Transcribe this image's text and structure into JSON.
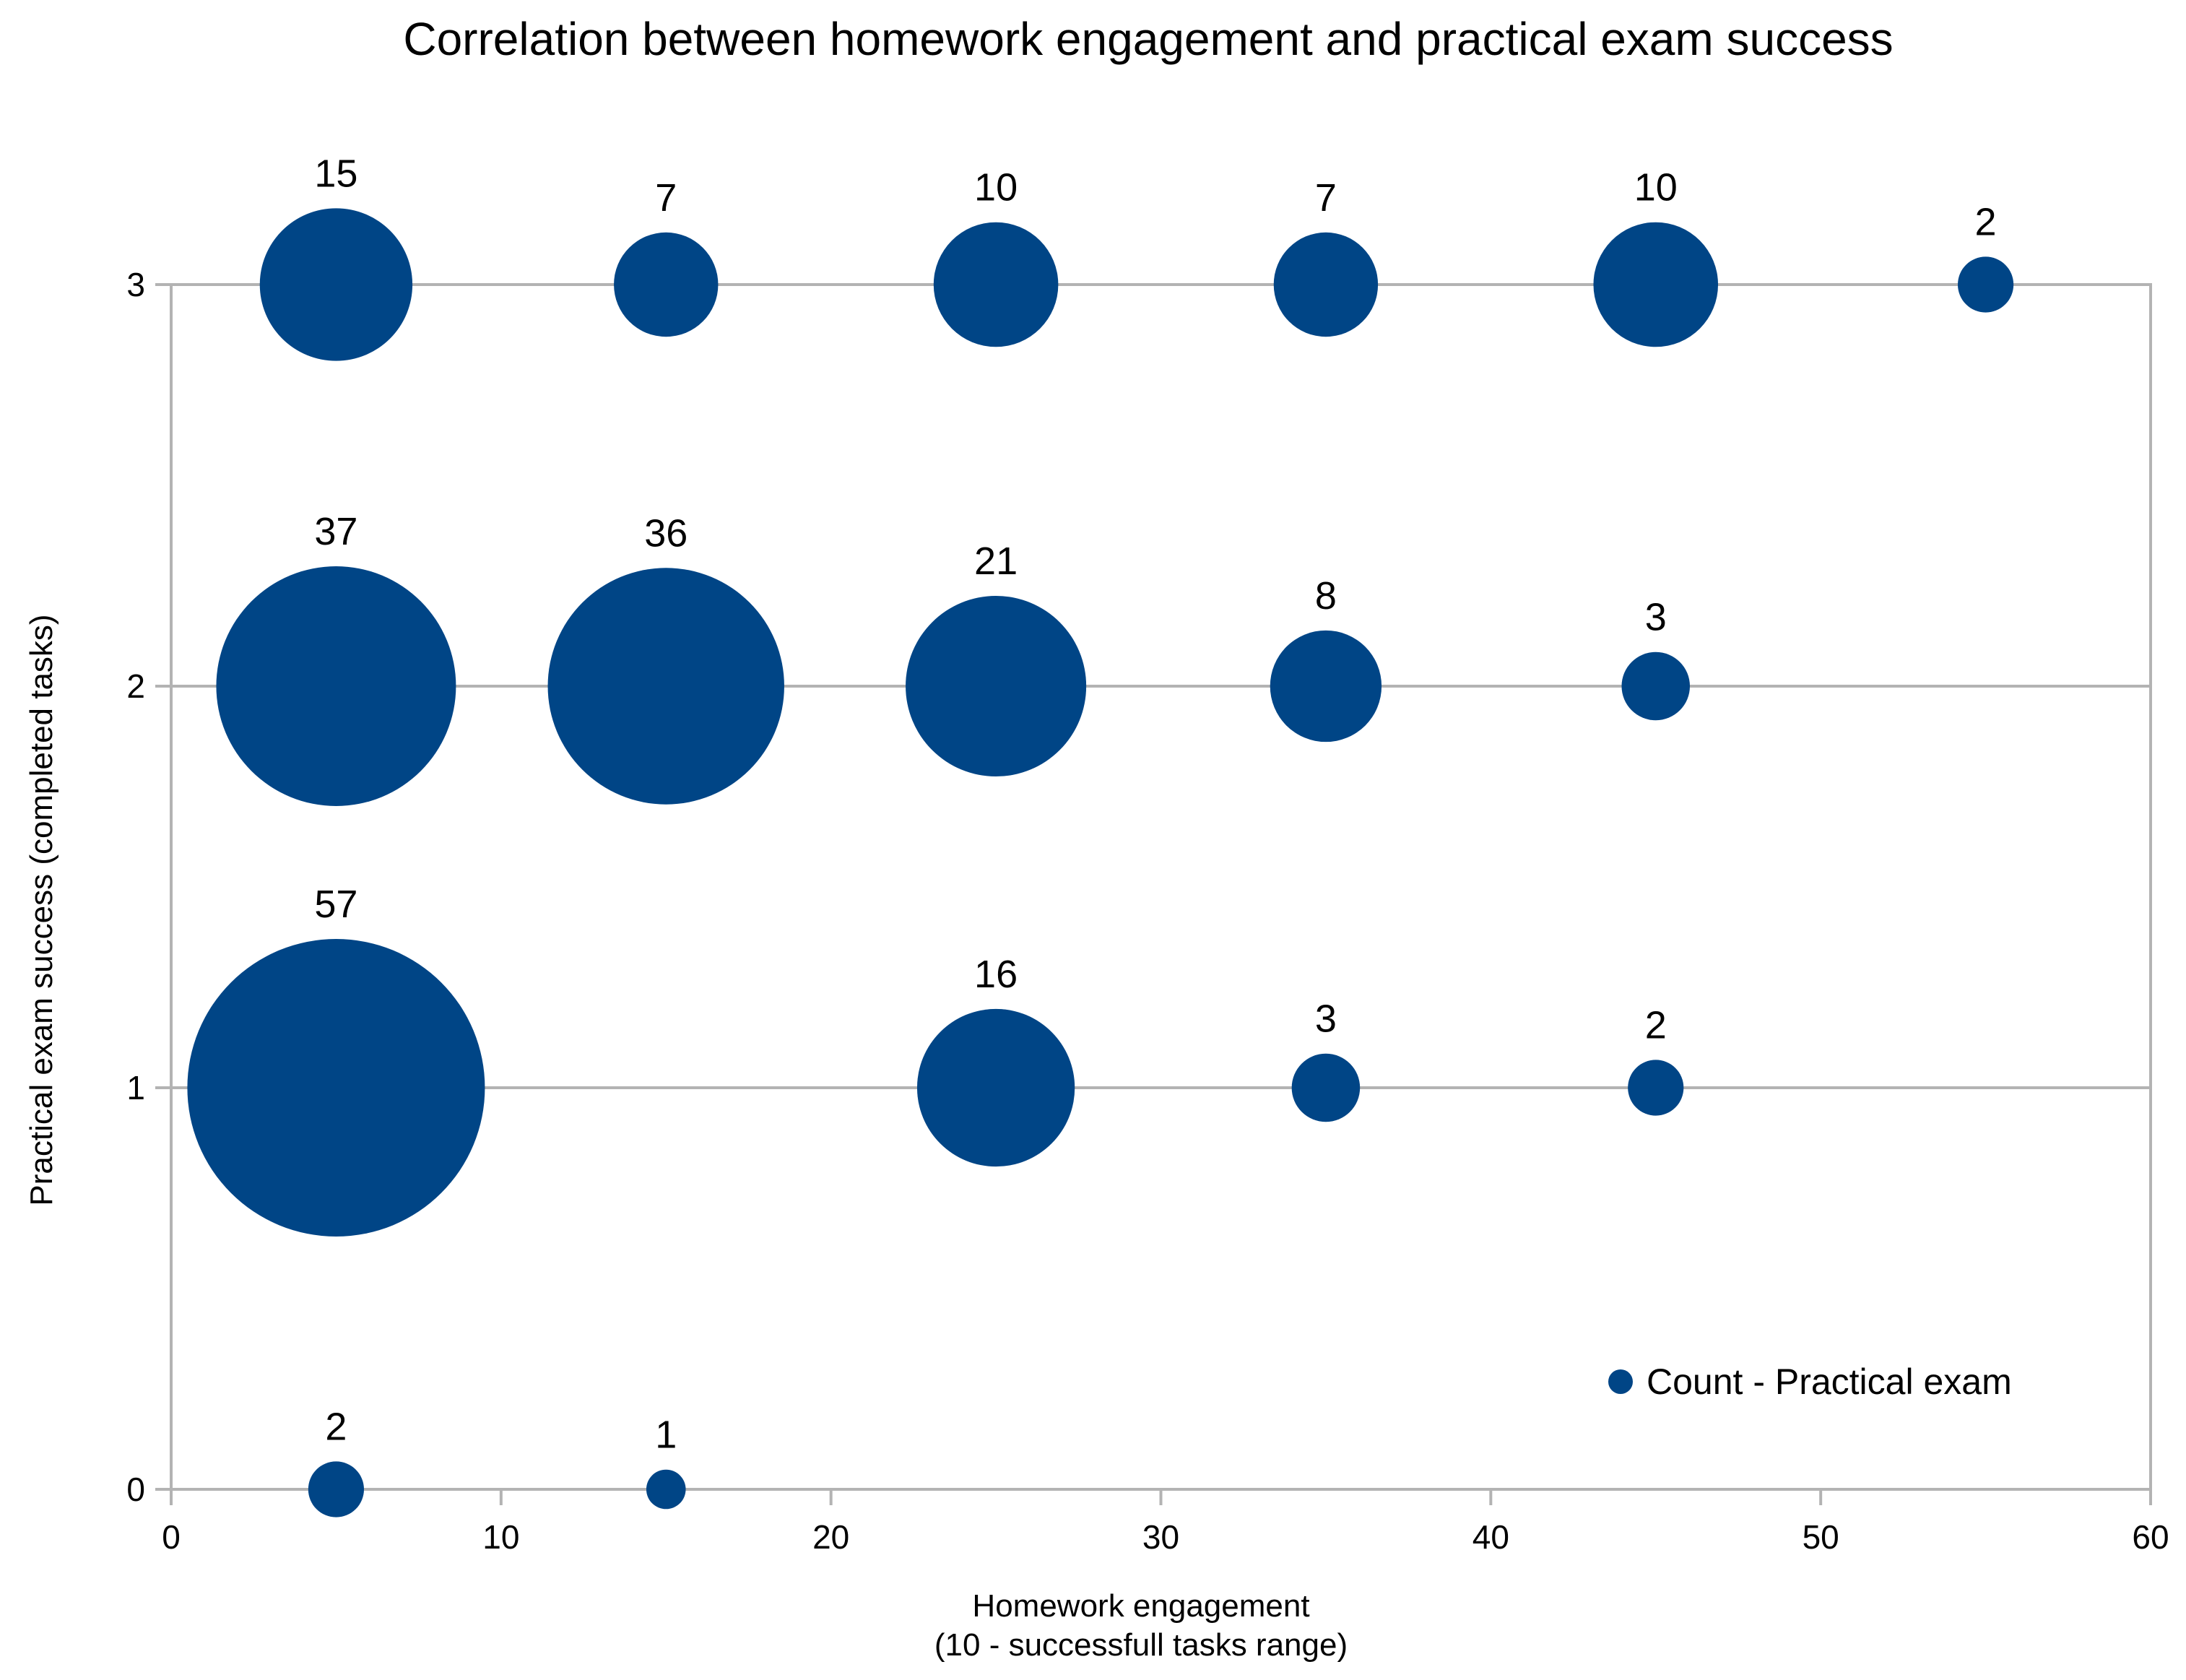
{
  "chart_data": {
    "type": "scatter",
    "title": "Correlation between homework engagement and practical exam success",
    "xlabel_line1": "Homework engagement",
    "xlabel_line2": "(10 - successfull tasks range)",
    "ylabel": "Practical exam success (completed tasks)",
    "xlim": [
      0,
      60
    ],
    "ylim": [
      0,
      3
    ],
    "xticks": [
      0,
      10,
      20,
      30,
      40,
      50,
      60
    ],
    "yticks": [
      0,
      1,
      2,
      3
    ],
    "grid": true,
    "legend_position": "bottom-right",
    "series": [
      {
        "name": "Count - Practical exam",
        "color": "#004586",
        "points": [
          {
            "x": 5,
            "y": 3,
            "size": 15
          },
          {
            "x": 15,
            "y": 3,
            "size": 7
          },
          {
            "x": 25,
            "y": 3,
            "size": 10
          },
          {
            "x": 35,
            "y": 3,
            "size": 7
          },
          {
            "x": 45,
            "y": 3,
            "size": 10
          },
          {
            "x": 55,
            "y": 3,
            "size": 2
          },
          {
            "x": 5,
            "y": 2,
            "size": 37
          },
          {
            "x": 15,
            "y": 2,
            "size": 36
          },
          {
            "x": 25,
            "y": 2,
            "size": 21
          },
          {
            "x": 35,
            "y": 2,
            "size": 8
          },
          {
            "x": 45,
            "y": 2,
            "size": 3
          },
          {
            "x": 5,
            "y": 1,
            "size": 57
          },
          {
            "x": 25,
            "y": 1,
            "size": 16
          },
          {
            "x": 35,
            "y": 1,
            "size": 3
          },
          {
            "x": 45,
            "y": 1,
            "size": 2
          },
          {
            "x": 5,
            "y": 0,
            "size": 2
          },
          {
            "x": 15,
            "y": 0,
            "size": 1
          }
        ]
      }
    ]
  }
}
